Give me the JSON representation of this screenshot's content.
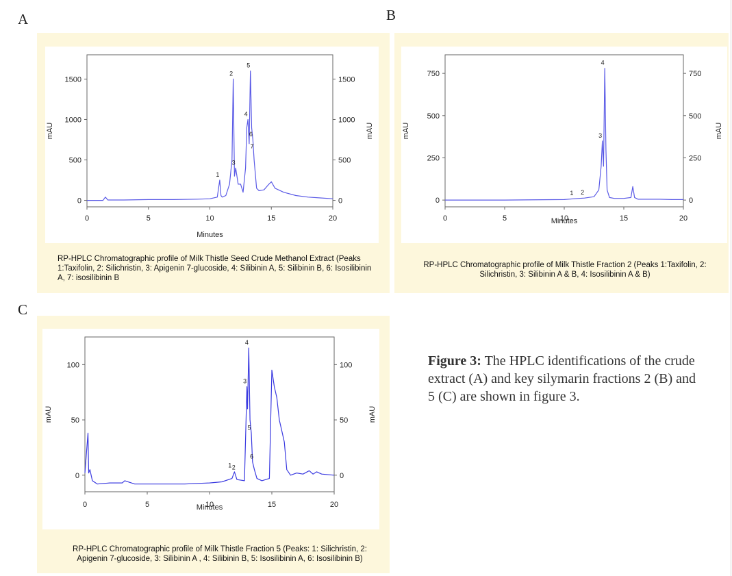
{
  "panels": {
    "a": "A",
    "b": "B",
    "c": "C"
  },
  "figure_note": {
    "label": "Figure 3:",
    "text": "The HPLC identifications of the crude extract (A) and key silymarin fractions 2 (B) and 5 (C) are shown in figure 3."
  },
  "chart_data": [
    {
      "type": "line",
      "panel": "A",
      "xlabel": "Minutes",
      "ylabel": "mAU",
      "xlim": [
        0,
        20
      ],
      "ylim": [
        -80,
        1800
      ],
      "xticks": [
        0,
        5,
        10,
        15,
        20
      ],
      "yticks": [
        0,
        500,
        1000,
        1500
      ],
      "line_color": "#5a5ae6",
      "caption": "RP-HPLC Chromatographic profile of Milk Thistle Seed Crude Methanol Extract (Peaks 1:Taxifolin, 2: Silichristin, 3: Apigenin 7-glucoside, 4: Silibinin A, 5: Silibinin B, 6: Isosilibinin A, 7: isosilibinin B",
      "series": [
        {
          "x": [
            0,
            1.3,
            1.5,
            1.7,
            3,
            5,
            7,
            9,
            10,
            10.6,
            10.8,
            10.9,
            11,
            11.3,
            11.6,
            11.8,
            11.9,
            12.0,
            12.1,
            12.3,
            12.5,
            12.7,
            12.9,
            13.0,
            13.1,
            13.2,
            13.3,
            13.4,
            13.5,
            13.6,
            13.8,
            14.0,
            14.4,
            14.8,
            15.0,
            15.3,
            16,
            17,
            18,
            19,
            20
          ],
          "y": [
            0,
            0,
            40,
            5,
            5,
            10,
            10,
            15,
            20,
            40,
            250,
            60,
            40,
            60,
            200,
            500,
            1500,
            300,
            400,
            200,
            200,
            100,
            400,
            900,
            1000,
            700,
            1600,
            900,
            750,
            500,
            150,
            120,
            130,
            200,
            230,
            150,
            100,
            60,
            40,
            30,
            20
          ]
        }
      ],
      "peaks": [
        {
          "label": "1",
          "x": 10.8,
          "y": 250
        },
        {
          "label": "2",
          "x": 11.9,
          "y": 1500
        },
        {
          "label": "3",
          "x": 12.1,
          "y": 400
        },
        {
          "label": "4",
          "x": 13.1,
          "y": 1000
        },
        {
          "label": "5",
          "x": 13.3,
          "y": 1600
        },
        {
          "label": "6",
          "x": 13.5,
          "y": 750
        },
        {
          "label": "7",
          "x": 13.6,
          "y": 600
        }
      ]
    },
    {
      "type": "line",
      "panel": "B",
      "xlabel": "Minutes",
      "ylabel": "mAU",
      "xlim": [
        0,
        20
      ],
      "ylim": [
        -40,
        860
      ],
      "xticks": [
        0,
        5,
        10,
        15,
        20
      ],
      "yticks": [
        0,
        250,
        500,
        750
      ],
      "line_color": "#5a5ae6",
      "caption": "RP-HPLC Chromatographic profile of Milk Thistle Fraction 2 (Peaks 1:Taxifolin, 2: Silichristin, 3: Silibinin A & B, 4: Isosilibinin A & B)",
      "series": [
        {
          "x": [
            0,
            5,
            10,
            10.8,
            11.7,
            12.5,
            12.9,
            13.1,
            13.2,
            13.3,
            13.4,
            13.5,
            13.6,
            13.8,
            14.2,
            15.0,
            15.6,
            15.75,
            15.9,
            16.2,
            17,
            18,
            19,
            20
          ],
          "y": [
            0,
            0,
            3,
            8,
            12,
            20,
            60,
            200,
            350,
            200,
            780,
            300,
            60,
            15,
            10,
            10,
            15,
            80,
            15,
            5,
            5,
            5,
            3,
            3
          ]
        }
      ],
      "peaks": [
        {
          "label": "1",
          "x": 10.8,
          "y": 8
        },
        {
          "label": "2",
          "x": 11.7,
          "y": 12
        },
        {
          "label": "3",
          "x": 13.2,
          "y": 350
        },
        {
          "label": "4",
          "x": 13.4,
          "y": 780
        }
      ]
    },
    {
      "type": "line",
      "panel": "C",
      "xlabel": "Minutes",
      "ylabel": "mAU",
      "xlim": [
        0,
        20
      ],
      "ylim": [
        -15,
        125
      ],
      "xticks": [
        0,
        5,
        10,
        15,
        20
      ],
      "yticks": [
        0,
        50,
        100
      ],
      "line_color": "#3a3ae0",
      "caption": "RP-HPLC Chromatographic profile of Milk Thistle Fraction 5 (Peaks: 1: Silichristin, 2: Apigenin 7-glucoside, 3: Silibinin A , 4: Silibinin B, 5: Isosilibinin A, 6: Isosilibinin B)",
      "series": [
        {
          "x": [
            0,
            0.25,
            0.3,
            0.4,
            0.6,
            1,
            2,
            3,
            3.2,
            4,
            6,
            8,
            10,
            11,
            11.8,
            12.0,
            12.2,
            12.8,
            13.0,
            13.05,
            13.15,
            13.25,
            13.35,
            13.45,
            13.6,
            13.8,
            14.2,
            14.8,
            15.0,
            15.2,
            15.4,
            15.6,
            15.8,
            16.0,
            16.2,
            16.5,
            17,
            17.5,
            18,
            18.3,
            18.6,
            19,
            20
          ],
          "y": [
            2,
            38,
            2,
            5,
            -5,
            -8,
            -7,
            -7,
            -5,
            -8,
            -8,
            -8,
            -7,
            -6,
            -3,
            3,
            -4,
            -5,
            80,
            60,
            115,
            50,
            38,
            12,
            5,
            -3,
            -5,
            -3,
            95,
            80,
            70,
            50,
            40,
            30,
            5,
            0,
            2,
            1,
            4,
            1,
            3,
            1,
            0
          ]
        }
      ],
      "peaks": [
        {
          "label": "1",
          "x": 11.8,
          "y": 4
        },
        {
          "label": "2",
          "x": 12.1,
          "y": 2
        },
        {
          "label": "3",
          "x": 13.0,
          "y": 80
        },
        {
          "label": "4",
          "x": 13.15,
          "y": 115
        },
        {
          "label": "5",
          "x": 13.35,
          "y": 38
        },
        {
          "label": "6",
          "x": 13.55,
          "y": 12
        }
      ]
    }
  ]
}
